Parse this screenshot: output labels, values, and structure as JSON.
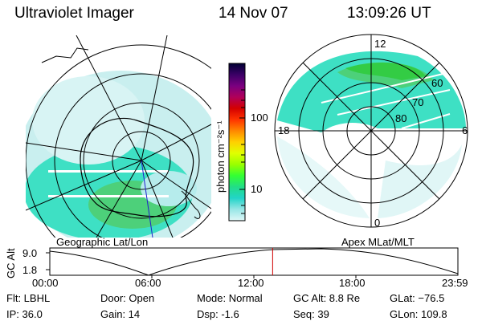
{
  "header": {
    "title": "Ultraviolet Imager",
    "date": "14 Nov 07",
    "time": "13:09:26 UT"
  },
  "left_panel": {
    "label": "Geographic Lat/Lon"
  },
  "right_panel": {
    "label": "Apex MLat/MLT",
    "mlt_labels": [
      "12",
      "18",
      "6",
      "0"
    ],
    "lat_labels": [
      "60",
      "70",
      "80"
    ]
  },
  "colorbar": {
    "unit_label": "photon cm⁻²s⁻¹",
    "tick_labels": [
      "100",
      "10"
    ],
    "colors": [
      "#000033",
      "#3b0066",
      "#7a0080",
      "#b0005a",
      "#d40000",
      "#ff3300",
      "#ff8800",
      "#ffd000",
      "#e0ff00",
      "#99ff00",
      "#33ff33",
      "#22dd88",
      "#22d4c8",
      "#99e6e6",
      "#dff7f7"
    ]
  },
  "altitude_plot": {
    "ylabel": "GC Alt",
    "y_ticks": [
      "9.0",
      "1.8"
    ],
    "x_ticks": [
      "00:00",
      "06:00",
      "12:00",
      "18:00",
      "23:59"
    ],
    "current_time_fraction": 0.546
  },
  "info": {
    "flt": "Flt: LBHL",
    "ip": "IP: 36.0",
    "door": "Door: Open",
    "gain": "Gain: 14",
    "mode": "Mode: Normal",
    "dsp": "Dsp:    -1.6",
    "gcalt": "GC Alt: 8.8 Re",
    "seq": "Seq: 39",
    "glat": "GLat: −76.5",
    "glon": "GLon: 109.8"
  }
}
